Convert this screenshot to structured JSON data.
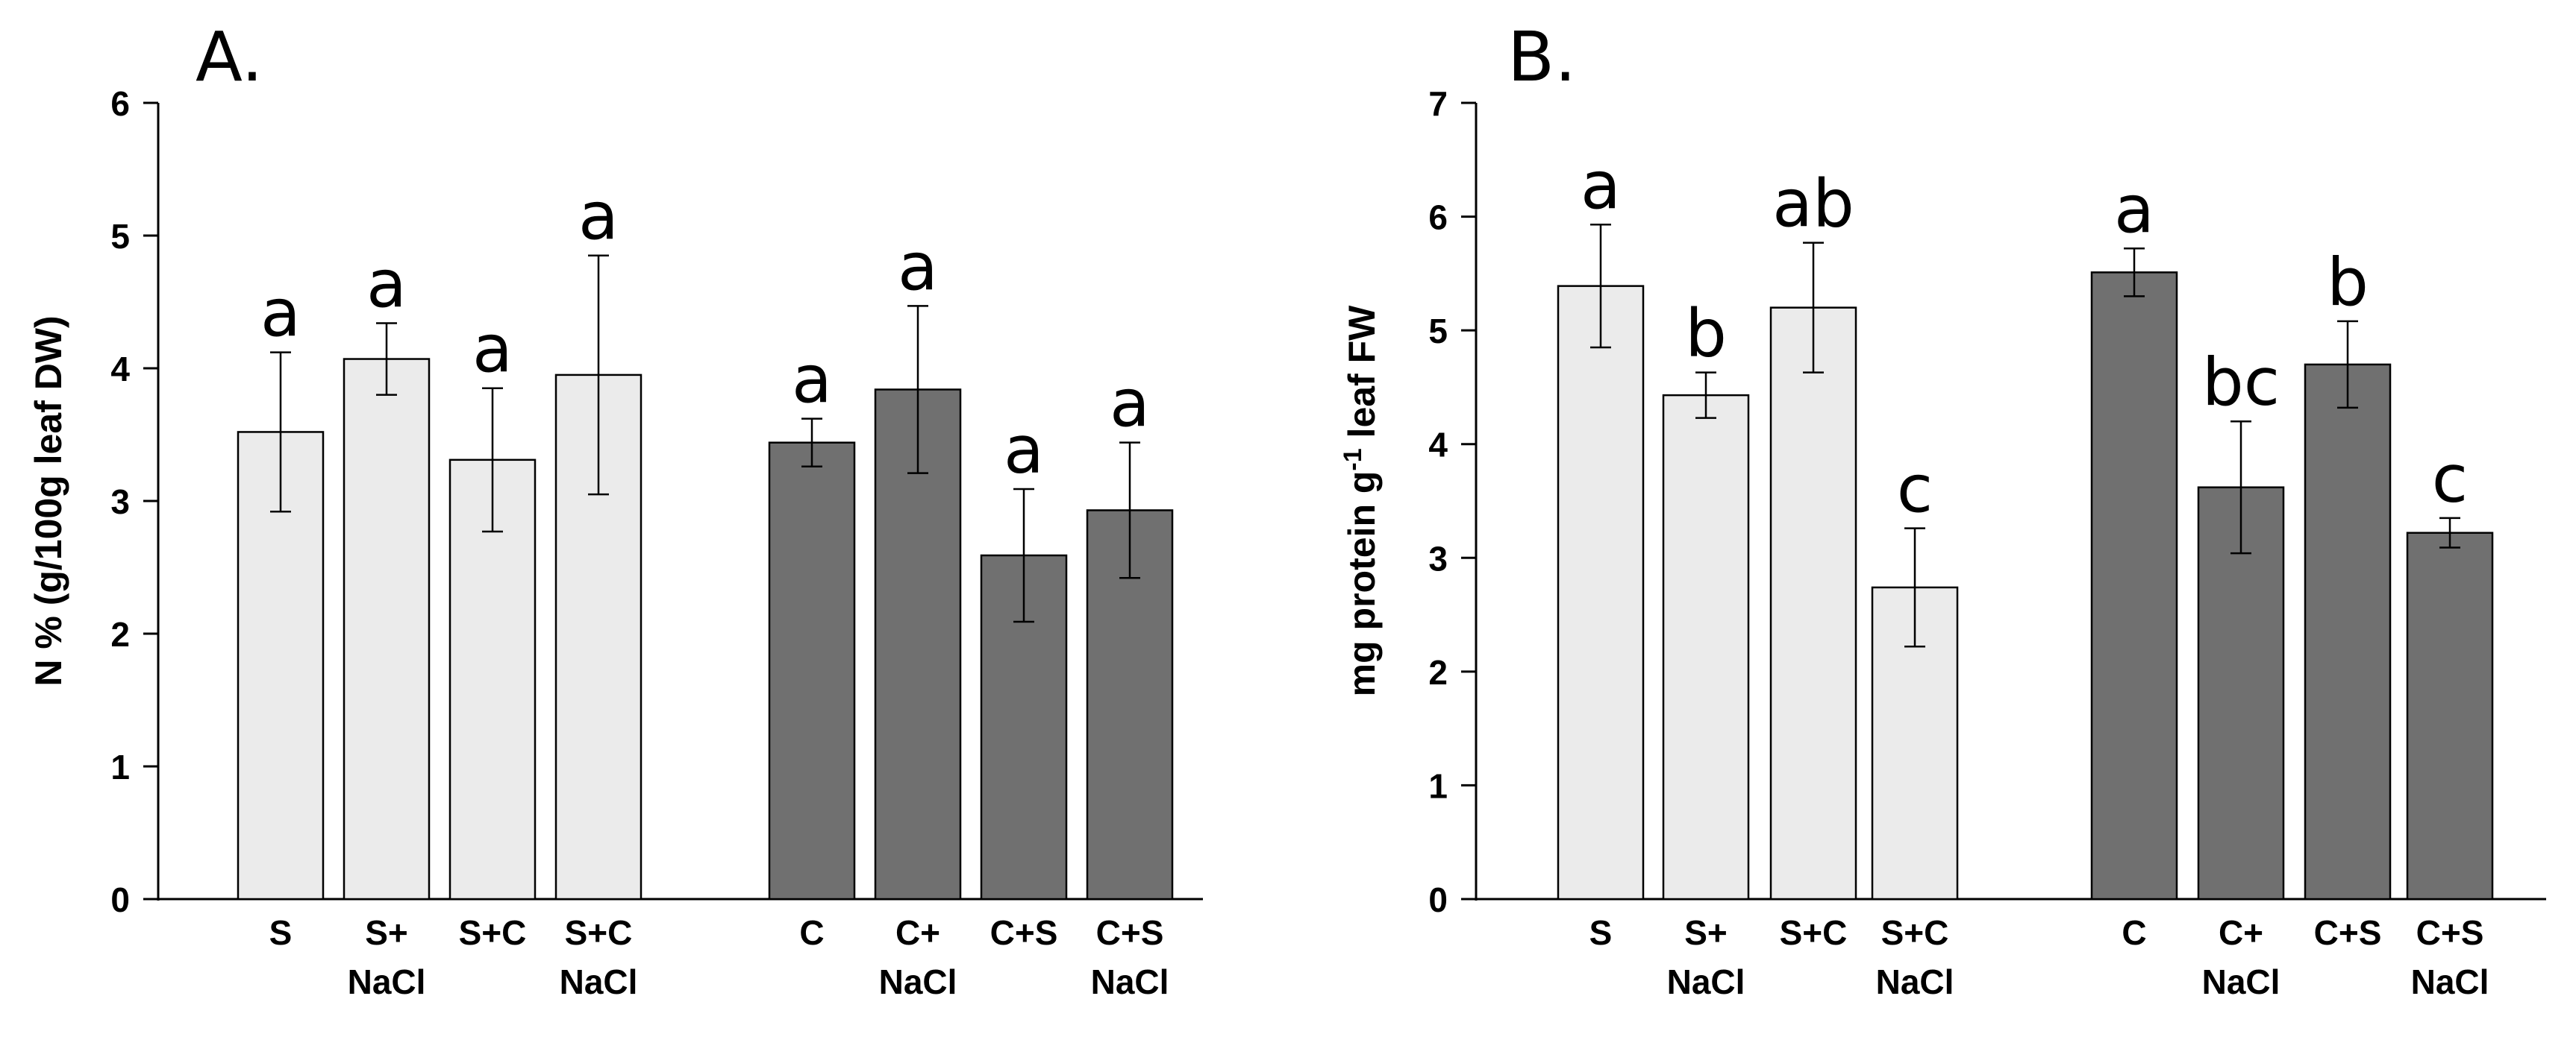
{
  "chart_data": [
    {
      "type": "bar",
      "panel_label": "A.",
      "ylabel": "N % (g/100g leaf DW)",
      "ylim": [
        0,
        6
      ],
      "yticks": [
        "0",
        "1",
        "2",
        "3",
        "4",
        "5",
        "6"
      ],
      "groups": [
        {
          "name": "S",
          "color": "#ebebeb",
          "bars": [
            {
              "label": [
                "S"
              ],
              "value": 3.52,
              "error": 0.6,
              "sig": "a"
            },
            {
              "label": [
                "S+",
                "NaCl"
              ],
              "value": 4.07,
              "error": 0.27,
              "sig": "a"
            },
            {
              "label": [
                "S+C"
              ],
              "value": 3.31,
              "error": 0.54,
              "sig": "a"
            },
            {
              "label": [
                "S+C",
                "NaCl"
              ],
              "value": 3.95,
              "error": 0.9,
              "sig": "a"
            }
          ]
        },
        {
          "name": "C",
          "color": "#707070",
          "bars": [
            {
              "label": [
                "C"
              ],
              "value": 3.44,
              "error": 0.18,
              "sig": "a"
            },
            {
              "label": [
                "C+",
                "NaCl"
              ],
              "value": 3.84,
              "error": 0.63,
              "sig": "a"
            },
            {
              "label": [
                "C+S"
              ],
              "value": 2.59,
              "error": 0.5,
              "sig": "a"
            },
            {
              "label": [
                "C+S",
                "NaCl"
              ],
              "value": 2.93,
              "error": 0.51,
              "sig": "a"
            }
          ]
        }
      ]
    },
    {
      "type": "bar",
      "panel_label": "B.",
      "ylabel": "mg protein g",
      "ylabel_sup": "-1",
      "ylabel_tail": " leaf FW",
      "ylim": [
        0,
        7
      ],
      "yticks": [
        "0",
        "1",
        "2",
        "3",
        "4",
        "5",
        "6",
        "7"
      ],
      "groups": [
        {
          "name": "S",
          "color": "#ebebeb",
          "bars": [
            {
              "label": [
                "S"
              ],
              "value": 5.39,
              "error": 0.54,
              "sig": "a"
            },
            {
              "label": [
                "S+",
                "NaCl"
              ],
              "value": 4.43,
              "error": 0.2,
              "sig": "b"
            },
            {
              "label": [
                "S+C"
              ],
              "value": 5.2,
              "error": 0.57,
              "sig": "ab"
            },
            {
              "label": [
                "S+C",
                "NaCl"
              ],
              "value": 2.74,
              "error": 0.52,
              "sig": "c"
            }
          ]
        },
        {
          "name": "C",
          "color": "#707070",
          "bars": [
            {
              "label": [
                "C"
              ],
              "value": 5.51,
              "error": 0.21,
              "sig": "a"
            },
            {
              "label": [
                "C+",
                "NaCl"
              ],
              "value": 3.62,
              "error": 0.58,
              "sig": "bc"
            },
            {
              "label": [
                "C+S"
              ],
              "value": 4.7,
              "error": 0.38,
              "sig": "b"
            },
            {
              "label": [
                "C+S",
                "NaCl"
              ],
              "value": 3.22,
              "error": 0.13,
              "sig": "c"
            }
          ]
        }
      ]
    }
  ]
}
